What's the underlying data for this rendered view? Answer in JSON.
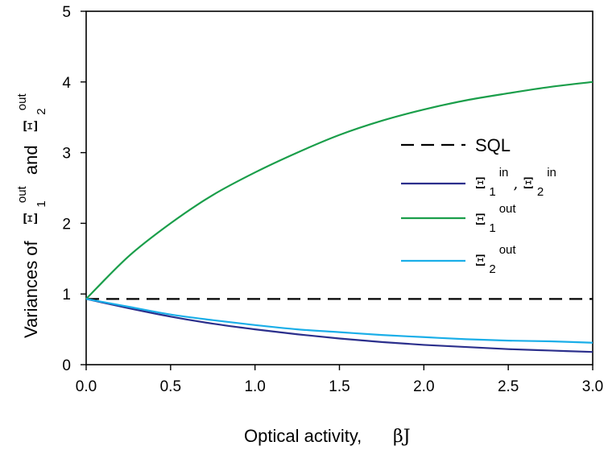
{
  "chart_data": {
    "type": "line",
    "xlabel": "Optical activity,",
    "xlabel_symbol": "βJ",
    "ylabel": "Variances of",
    "ylabel_mid": "and",
    "ylabel_symbol": "Ξ",
    "ylabel_sub_1": "1",
    "ylabel_sup_1": "out",
    "ylabel_sub_2": "2",
    "ylabel_sup_2": "out",
    "xlim": [
      0.0,
      3.0
    ],
    "ylim": [
      0,
      5
    ],
    "x_ticks": [
      "0.0",
      "0.5",
      "1.0",
      "1.5",
      "2.0",
      "2.5",
      "3.0"
    ],
    "y_ticks": [
      "0",
      "1",
      "2",
      "3",
      "4",
      "5"
    ],
    "grid": false,
    "legend_position": "right",
    "series": [
      {
        "key": "sql",
        "legend_text": "SQL",
        "color": "#000000",
        "dash": "dashed",
        "x": [
          0.0,
          3.0
        ],
        "y": [
          0.93,
          0.93
        ]
      },
      {
        "key": "in",
        "legend_symbol": "Ξ",
        "legend_sub_a": "1",
        "legend_sup_a": "in",
        "legend_sep": ", ",
        "legend_sub_b": "2",
        "legend_sup_b": "in",
        "color": "#2b2f8c",
        "dash": "solid",
        "x": [
          0.0,
          0.25,
          0.5,
          0.75,
          1.0,
          1.25,
          1.5,
          1.75,
          2.0,
          2.25,
          2.5,
          2.75,
          3.0
        ],
        "y": [
          0.93,
          0.8,
          0.68,
          0.58,
          0.5,
          0.43,
          0.37,
          0.32,
          0.28,
          0.25,
          0.22,
          0.2,
          0.18
        ]
      },
      {
        "key": "out1",
        "legend_symbol": "Ξ",
        "legend_sub_a": "1",
        "legend_sup_a": "out",
        "color": "#1a9e4a",
        "dash": "solid",
        "x": [
          0.0,
          0.25,
          0.5,
          0.75,
          1.0,
          1.25,
          1.5,
          1.75,
          2.0,
          2.25,
          2.5,
          2.75,
          3.0
        ],
        "y": [
          0.93,
          1.53,
          2.0,
          2.4,
          2.72,
          3.0,
          3.25,
          3.45,
          3.61,
          3.74,
          3.84,
          3.93,
          4.0
        ]
      },
      {
        "key": "out2",
        "legend_symbol": "Ξ",
        "legend_sub_a": "2",
        "legend_sup_a": "out",
        "color": "#1aaee8",
        "dash": "solid",
        "x": [
          0.0,
          0.25,
          0.5,
          0.75,
          1.0,
          1.25,
          1.5,
          1.75,
          2.0,
          2.25,
          2.5,
          2.75,
          3.0
        ],
        "y": [
          0.93,
          0.82,
          0.71,
          0.63,
          0.56,
          0.5,
          0.46,
          0.42,
          0.39,
          0.36,
          0.34,
          0.33,
          0.31
        ]
      }
    ]
  }
}
